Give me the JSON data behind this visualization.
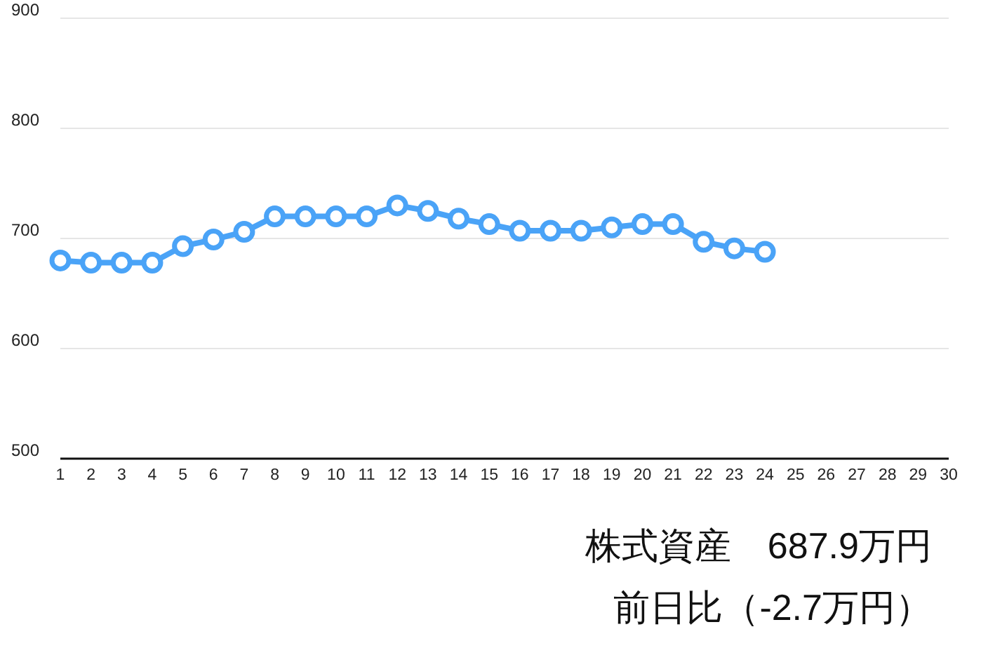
{
  "chart_data": {
    "type": "line",
    "x": [
      1,
      2,
      3,
      4,
      5,
      6,
      7,
      8,
      9,
      10,
      11,
      12,
      13,
      14,
      15,
      16,
      17,
      18,
      19,
      20,
      21,
      22,
      23,
      24
    ],
    "series": [
      {
        "color": "#4aa3f7",
        "values": [
          680,
          678,
          678,
          678,
          693,
          699,
          706,
          720,
          720,
          720,
          720,
          730,
          725,
          718,
          713,
          707,
          707,
          707,
          710,
          713,
          713,
          697,
          691,
          687.9
        ]
      }
    ],
    "xlim": [
      1,
      30
    ],
    "ylim": [
      500,
      900
    ],
    "xticks": [
      1,
      2,
      3,
      4,
      5,
      6,
      7,
      8,
      9,
      10,
      11,
      12,
      13,
      14,
      15,
      16,
      17,
      18,
      19,
      20,
      21,
      22,
      23,
      24,
      25,
      26,
      27,
      28,
      29,
      30
    ],
    "yticks": [
      500,
      600,
      700,
      800,
      900
    ],
    "grid": "y",
    "marker": "circle",
    "annotations": [
      "株式資産　687.9万円",
      "前日比（-2.7万円）"
    ]
  }
}
